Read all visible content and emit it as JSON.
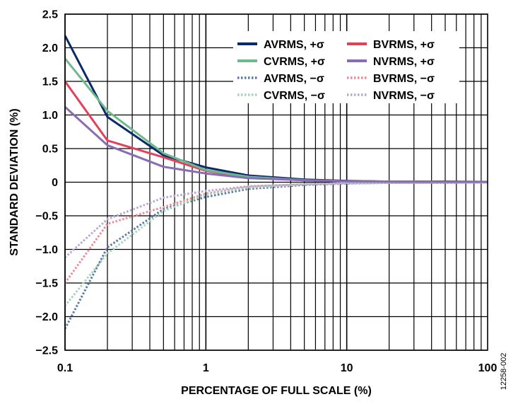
{
  "figure_id": "12258-002",
  "chart_data": {
    "type": "line",
    "title": "",
    "xlabel": "PERCENTAGE OF FULL SCALE (%)",
    "ylabel": "STANDARD DEVIATION (%)",
    "xscale": "log",
    "xlim": [
      0.1,
      100
    ],
    "ylim": [
      -2.5,
      2.5
    ],
    "grid": true,
    "legend_position": "top-right",
    "x_ticks": [
      {
        "value": 0.1,
        "label": "0.1"
      },
      {
        "value": 1,
        "label": "1"
      },
      {
        "value": 10,
        "label": "10"
      },
      {
        "value": 100,
        "label": "100"
      }
    ],
    "y_ticks": [
      {
        "value": 2.5,
        "label": "2.5"
      },
      {
        "value": 2.0,
        "label": "2.0"
      },
      {
        "value": 1.5,
        "label": "1.5"
      },
      {
        "value": 1.0,
        "label": "1.0"
      },
      {
        "value": 0.5,
        "label": "0.5"
      },
      {
        "value": 0,
        "label": "0"
      },
      {
        "value": -0.5,
        "label": "−0.5"
      },
      {
        "value": -1.0,
        "label": "−1.0"
      },
      {
        "value": -1.5,
        "label": "−1.5"
      },
      {
        "value": -2.0,
        "label": "−2.0"
      },
      {
        "value": -2.5,
        "label": "−2.5"
      }
    ],
    "x": [
      0.1,
      0.2,
      0.5,
      1,
      2,
      5,
      10,
      20,
      50,
      100
    ],
    "series": [
      {
        "name": "AVRMS, +σ",
        "color": "#0b2a6b",
        "style": "solid",
        "values": [
          2.18,
          0.97,
          0.4,
          0.22,
          0.1,
          0.04,
          0.02,
          0.01,
          0.01,
          0.005
        ]
      },
      {
        "name": "BVRMS, +σ",
        "color": "#e4405a",
        "style": "solid",
        "values": [
          1.5,
          0.62,
          0.37,
          0.17,
          0.07,
          0.03,
          0.015,
          0.01,
          0.005,
          0.005
        ]
      },
      {
        "name": "CVRMS, +σ",
        "color": "#6fb98f",
        "style": "solid",
        "values": [
          1.84,
          1.06,
          0.43,
          0.18,
          0.08,
          0.03,
          0.015,
          0.01,
          0.005,
          0.005
        ]
      },
      {
        "name": "NVRMS, +σ",
        "color": "#8a6bb5",
        "style": "solid",
        "values": [
          1.12,
          0.55,
          0.23,
          0.13,
          0.06,
          0.03,
          0.015,
          0.01,
          0.005,
          0.005
        ]
      },
      {
        "name": "AVRMS, −σ",
        "color": "#5b79a8",
        "style": "dotted",
        "values": [
          -2.18,
          -0.97,
          -0.4,
          -0.22,
          -0.1,
          -0.04,
          -0.02,
          -0.01,
          -0.01,
          -0.005
        ]
      },
      {
        "name": "BVRMS, −σ",
        "color": "#ef8a98",
        "style": "dotted",
        "values": [
          -1.5,
          -0.62,
          -0.37,
          -0.17,
          -0.07,
          -0.03,
          -0.015,
          -0.01,
          -0.005,
          -0.005
        ]
      },
      {
        "name": "CVRMS, −σ",
        "color": "#a4d4b6",
        "style": "dotted",
        "values": [
          -1.84,
          -1.06,
          -0.43,
          -0.18,
          -0.08,
          -0.03,
          -0.015,
          -0.01,
          -0.005,
          -0.005
        ]
      },
      {
        "name": "NVRMS, −σ",
        "color": "#b9a6d6",
        "style": "dotted",
        "values": [
          -1.12,
          -0.55,
          -0.23,
          -0.13,
          -0.06,
          -0.03,
          -0.015,
          -0.01,
          -0.005,
          -0.005
        ]
      }
    ]
  }
}
